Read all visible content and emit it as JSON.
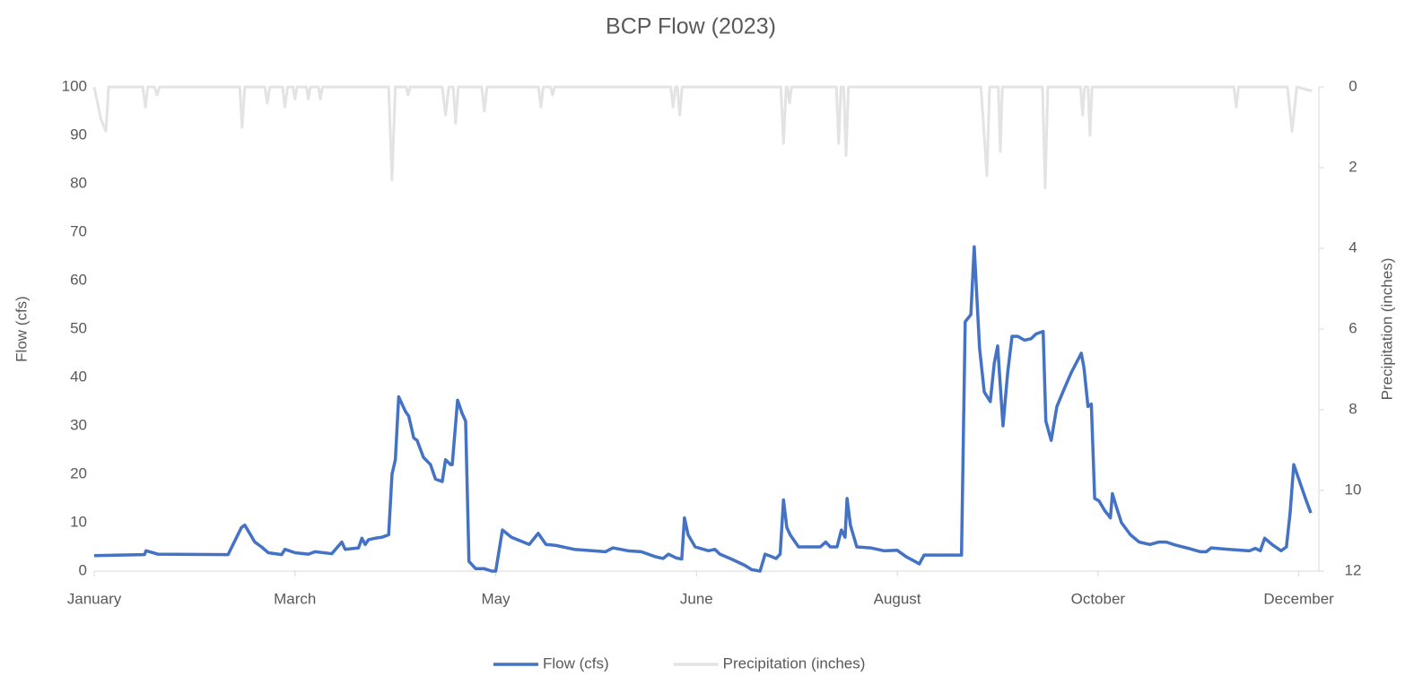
{
  "chart_data": {
    "type": "line",
    "title": "BCP Flow (2023)",
    "y_label": "Flow (cfs)",
    "y2_label": "Precipitation (inches)",
    "xlim": [
      0,
      366
    ],
    "xticks": [
      {
        "value": 0,
        "label": "January"
      },
      {
        "value": 60,
        "label": "March"
      },
      {
        "value": 120,
        "label": "May"
      },
      {
        "value": 180,
        "label": "June"
      },
      {
        "value": 240,
        "label": "August"
      },
      {
        "value": 300,
        "label": "October"
      },
      {
        "value": 360,
        "label": "December"
      }
    ],
    "ylim": [
      0,
      100
    ],
    "yticks": [
      0,
      10,
      20,
      30,
      40,
      50,
      60,
      70,
      80,
      90,
      100
    ],
    "y2lim": [
      12,
      0
    ],
    "y2ticks": [
      0,
      2,
      4,
      6,
      8,
      10,
      12
    ],
    "legend": "bottom",
    "series": [
      {
        "name": "Precipitation (inches)",
        "color": "#e3e3e3",
        "axis": "y2",
        "x": [
          0,
          2,
          3.5,
          4.3,
          14.5,
          15.3,
          16,
          18,
          18.8,
          19.5,
          43.5,
          44.2,
          45,
          51,
          51.7,
          52.5,
          56.3,
          57,
          57.8,
          59.4,
          60,
          60.6,
          63.4,
          64,
          64.6,
          67,
          67.6,
          68.2,
          88,
          89,
          90,
          93.2,
          93.8,
          94.4,
          104,
          105,
          106,
          107.3,
          108,
          108.8,
          115.8,
          116.6,
          117.4,
          132.8,
          133.5,
          134.2,
          136.4,
          137,
          137.6,
          172.3,
          173,
          173.7,
          174.3,
          175,
          175.7,
          205.2,
          206,
          206.8,
          207.2,
          207.8,
          208.4,
          221.8,
          222.5,
          223.2,
          224,
          224.7,
          225.4,
          265,
          266.8,
          267.6,
          270.2,
          270.8,
          271.4,
          283.4,
          284.2,
          285,
          294.8,
          295.4,
          296,
          297,
          297.6,
          298.2,
          340.6,
          341.3,
          342,
          356.6,
          358,
          359.4,
          364
        ],
        "values": [
          0,
          0.8,
          1.1,
          0,
          0,
          0.5,
          0,
          0,
          0.2,
          0,
          0,
          1.0,
          0,
          0,
          0.4,
          0,
          0,
          0.5,
          0,
          0,
          0.3,
          0,
          0,
          0.3,
          0,
          0,
          0.3,
          0,
          0,
          2.3,
          0,
          0,
          0.2,
          0,
          0,
          0.7,
          0,
          0,
          0.9,
          0,
          0,
          0.6,
          0,
          0,
          0.5,
          0,
          0,
          0.2,
          0,
          0,
          0.5,
          0,
          0,
          0.7,
          0,
          0,
          1.4,
          0,
          0,
          0.4,
          0,
          0,
          1.4,
          0,
          0,
          1.7,
          0,
          0,
          2.2,
          0,
          0,
          1.6,
          0,
          0,
          2.5,
          0,
          0,
          0.7,
          0,
          0,
          1.2,
          0,
          0,
          0.5,
          0,
          0,
          1.1,
          0,
          0.1
        ]
      },
      {
        "name": "Flow (cfs)",
        "color": "#4472c4",
        "axis": "y",
        "x": [
          0,
          15,
          15.5,
          19,
          40,
          44,
          45,
          48,
          50,
          52,
          56,
          57,
          60,
          64,
          66,
          71,
          74,
          75,
          79,
          80,
          81,
          82,
          84,
          86,
          88,
          89,
          90,
          91,
          93,
          94,
          95.5,
          96.5,
          98.4,
          100.5,
          102,
          104,
          105,
          106.5,
          107,
          108.6,
          110,
          111,
          112,
          114,
          116.6,
          118.8,
          120,
          122,
          124.7,
          130,
          132.7,
          135,
          138,
          143.4,
          152.8,
          155,
          159.5,
          163.5,
          167.6,
          170,
          171.6,
          174,
          175.6,
          176.4,
          177.5,
          179.6,
          183.6,
          185.5,
          187,
          190.4,
          194.4,
          196.5,
          199,
          200.5,
          202.4,
          203.8,
          205,
          206,
          207,
          208,
          210.5,
          214.5,
          217,
          218.6,
          220,
          222,
          223.3,
          224.4,
          225,
          226,
          227.9,
          232,
          236,
          240,
          242.6,
          246.6,
          248,
          253.4,
          259.2,
          260.3,
          262,
          263,
          264.6,
          266,
          267.8,
          269,
          270,
          271.6,
          273,
          274.3,
          276,
          278,
          280,
          281.5,
          283.6,
          284.4,
          286,
          287.7,
          289.5,
          292,
          295,
          295.8,
          297,
          298,
          299,
          300.3,
          302,
          303.7,
          304.3,
          305.6,
          307,
          309.7,
          312.3,
          315.5,
          318.2,
          320.4,
          323,
          327,
          330.6,
          332.4,
          333.8,
          339,
          345.3,
          347,
          348.5,
          349.8,
          352,
          354.7,
          356.3,
          357.4,
          358.5,
          360,
          362,
          363.6
        ],
        "values": [
          3.2,
          3.4,
          4.2,
          3.5,
          3.4,
          9,
          9.5,
          6,
          5,
          3.8,
          3.4,
          4.5,
          3.8,
          3.5,
          4,
          3.6,
          6,
          4.5,
          4.8,
          6.8,
          5.5,
          6.5,
          6.8,
          7,
          7.5,
          20,
          23,
          36,
          33,
          32,
          27.5,
          27,
          23.5,
          22,
          19,
          18.5,
          23,
          22,
          22,
          35.3,
          32.5,
          31,
          2,
          0.5,
          0.5,
          0,
          0,
          8.5,
          7,
          5.5,
          7.8,
          5.5,
          5.3,
          4.5,
          4,
          4.8,
          4.2,
          4,
          3,
          2.6,
          3.5,
          2.7,
          2.5,
          11,
          7.5,
          5,
          4.2,
          4.5,
          3.5,
          2.5,
          1.2,
          0.3,
          0,
          3.5,
          3,
          2.6,
          3.5,
          14.7,
          9,
          7.5,
          5,
          5,
          5,
          6,
          5,
          5,
          8.5,
          7,
          15,
          9.5,
          5,
          4.8,
          4.2,
          4.3,
          3,
          1.5,
          3.3,
          3.3,
          3.3,
          51.5,
          53,
          67,
          46,
          37,
          35,
          43,
          46.5,
          30,
          41,
          48.5,
          48.5,
          47.7,
          48,
          49,
          49.5,
          31,
          27,
          34,
          37,
          41,
          45,
          42,
          34,
          34.5,
          15,
          14.5,
          12.5,
          11,
          16,
          13,
          10,
          7.5,
          6,
          5.5,
          6,
          6,
          5.4,
          4.7,
          4,
          4,
          4.8,
          4.5,
          4.2,
          4.7,
          4.2,
          6.8,
          5.5,
          4.2,
          5,
          12,
          22,
          19,
          15,
          12
        ]
      }
    ]
  }
}
